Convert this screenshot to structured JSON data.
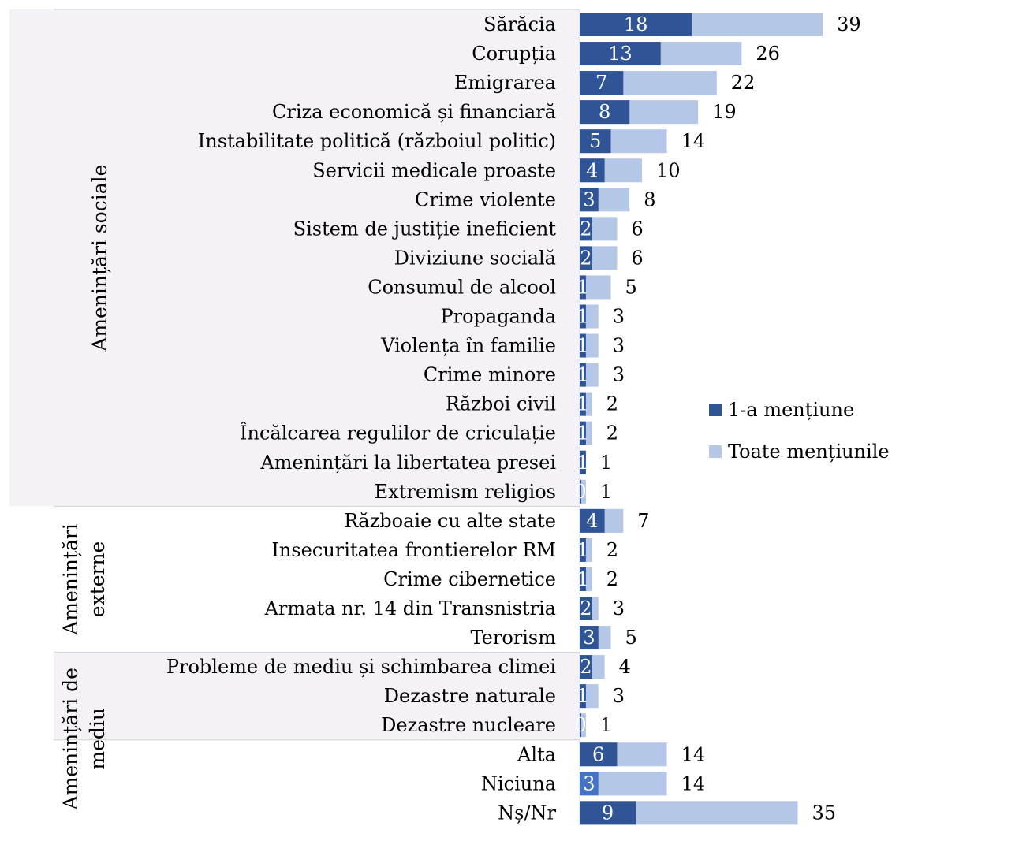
{
  "chart_data": {
    "type": "bar",
    "orientation": "horizontal",
    "title": "",
    "groups": [
      {
        "label": "Amenințări sociale",
        "rows": 17
      },
      {
        "label": "Amenințări externe",
        "rows": 5
      },
      {
        "label": "Amenințări de mediu",
        "rows": 3
      }
    ],
    "categories": [
      "Sărăcia",
      "Corupția",
      "Emigrarea",
      "Criza economică și financiară",
      "Instabilitate politică (războiul politic)",
      "Servicii medicale proaste",
      "Crime violente",
      "Sistem de justiție ineficient",
      "Diviziune socială",
      "Consumul de alcool",
      "Propaganda",
      "Violența în familie",
      "Crime minore",
      "Război civil",
      "Încălcarea regulilor de criculație",
      "Amenințări la libertatea presei",
      "Extremism religios",
      "Războaie cu alte state",
      "Insecuritatea frontierelor RM",
      "Crime cibernetice",
      "Armata nr. 14 din Transnistria ",
      "Terorism",
      "Probleme de mediu și schimbarea climei",
      "Dezastre naturale",
      "Dezastre nucleare",
      "Alta",
      "Niciuna",
      "Nș/Nr"
    ],
    "series": [
      {
        "name": "1-a mențiune",
        "color": "#2f5597",
        "values": [
          18,
          13,
          7,
          8,
          5,
          4,
          3,
          2,
          2,
          1,
          1,
          1,
          1,
          1,
          1,
          1,
          0,
          4,
          1,
          1,
          2,
          3,
          2,
          1,
          0,
          6,
          3,
          9
        ]
      },
      {
        "name": "Toate mențiunile",
        "color": "#b4c7e7",
        "values": [
          39,
          26,
          22,
          19,
          14,
          10,
          8,
          6,
          6,
          5,
          3,
          3,
          3,
          2,
          2,
          1,
          1,
          7,
          2,
          2,
          3,
          5,
          4,
          3,
          1,
          14,
          14,
          35
        ]
      }
    ],
    "xlim": [
      0,
      40
    ],
    "grid": false,
    "legend_position": "right"
  }
}
